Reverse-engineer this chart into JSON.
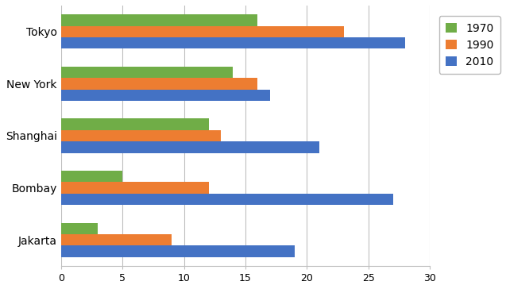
{
  "cities_display": [
    "Tokyo",
    "New York",
    "Shanghai",
    "Bombay",
    "Jakarta"
  ],
  "years": [
    "1970",
    "1990",
    "2010"
  ],
  "values": {
    "Tokyo": [
      16,
      23,
      28
    ],
    "New York": [
      14,
      16,
      17
    ],
    "Shanghai": [
      12,
      13,
      21
    ],
    "Bombay": [
      5,
      12,
      27
    ],
    "Jakarta": [
      3,
      9,
      19
    ]
  },
  "colors": {
    "1970": "#70AD47",
    "1990": "#ED7D31",
    "2010": "#4472C4"
  },
  "xlim": [
    0,
    30
  ],
  "xticks": [
    0,
    5,
    10,
    15,
    20,
    25,
    30
  ],
  "bar_height": 0.22,
  "background_color": "#FFFFFF",
  "grid_color": "#BFBFBF"
}
